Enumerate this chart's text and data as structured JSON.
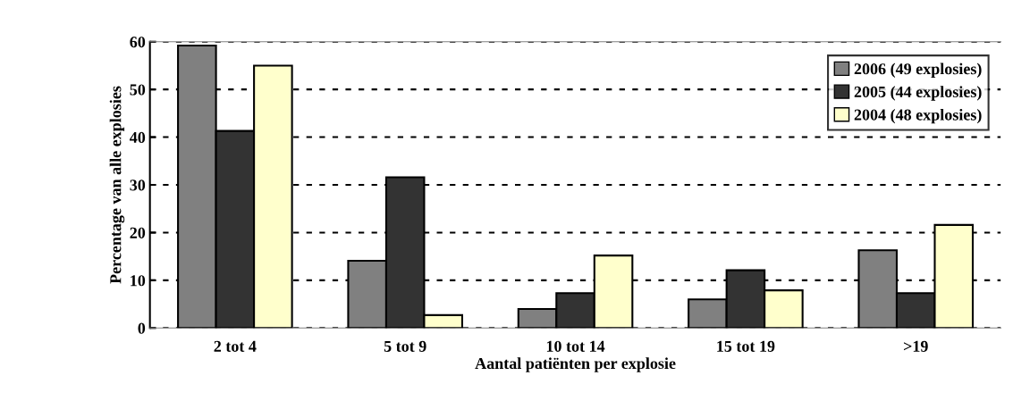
{
  "chart_data": {
    "type": "bar",
    "xlabel": "Aantal patiënten per explosie",
    "ylabel": "Percentage van alle explosies",
    "categories": [
      "2 tot 4",
      "5 tot 9",
      "10 tot 14",
      "15 tot 19",
      ">19"
    ],
    "series": [
      {
        "name": "2006 (49 explosies)",
        "color": "#808080",
        "values": [
          59.2,
          14.1,
          4.0,
          6.0,
          16.3
        ]
      },
      {
        "name": "2005 (44 explosies)",
        "color": "#333333",
        "values": [
          41.3,
          31.6,
          7.3,
          12.1,
          7.3
        ]
      },
      {
        "name": "2004 (48 explosies)",
        "color": "#ffffcc",
        "values": [
          55.0,
          2.7,
          15.2,
          7.9,
          21.6
        ]
      }
    ],
    "ylim": [
      0,
      60
    ],
    "yticks": [
      0,
      10,
      20,
      30,
      40,
      50,
      60
    ],
    "grid": "y",
    "legend": "top right"
  }
}
